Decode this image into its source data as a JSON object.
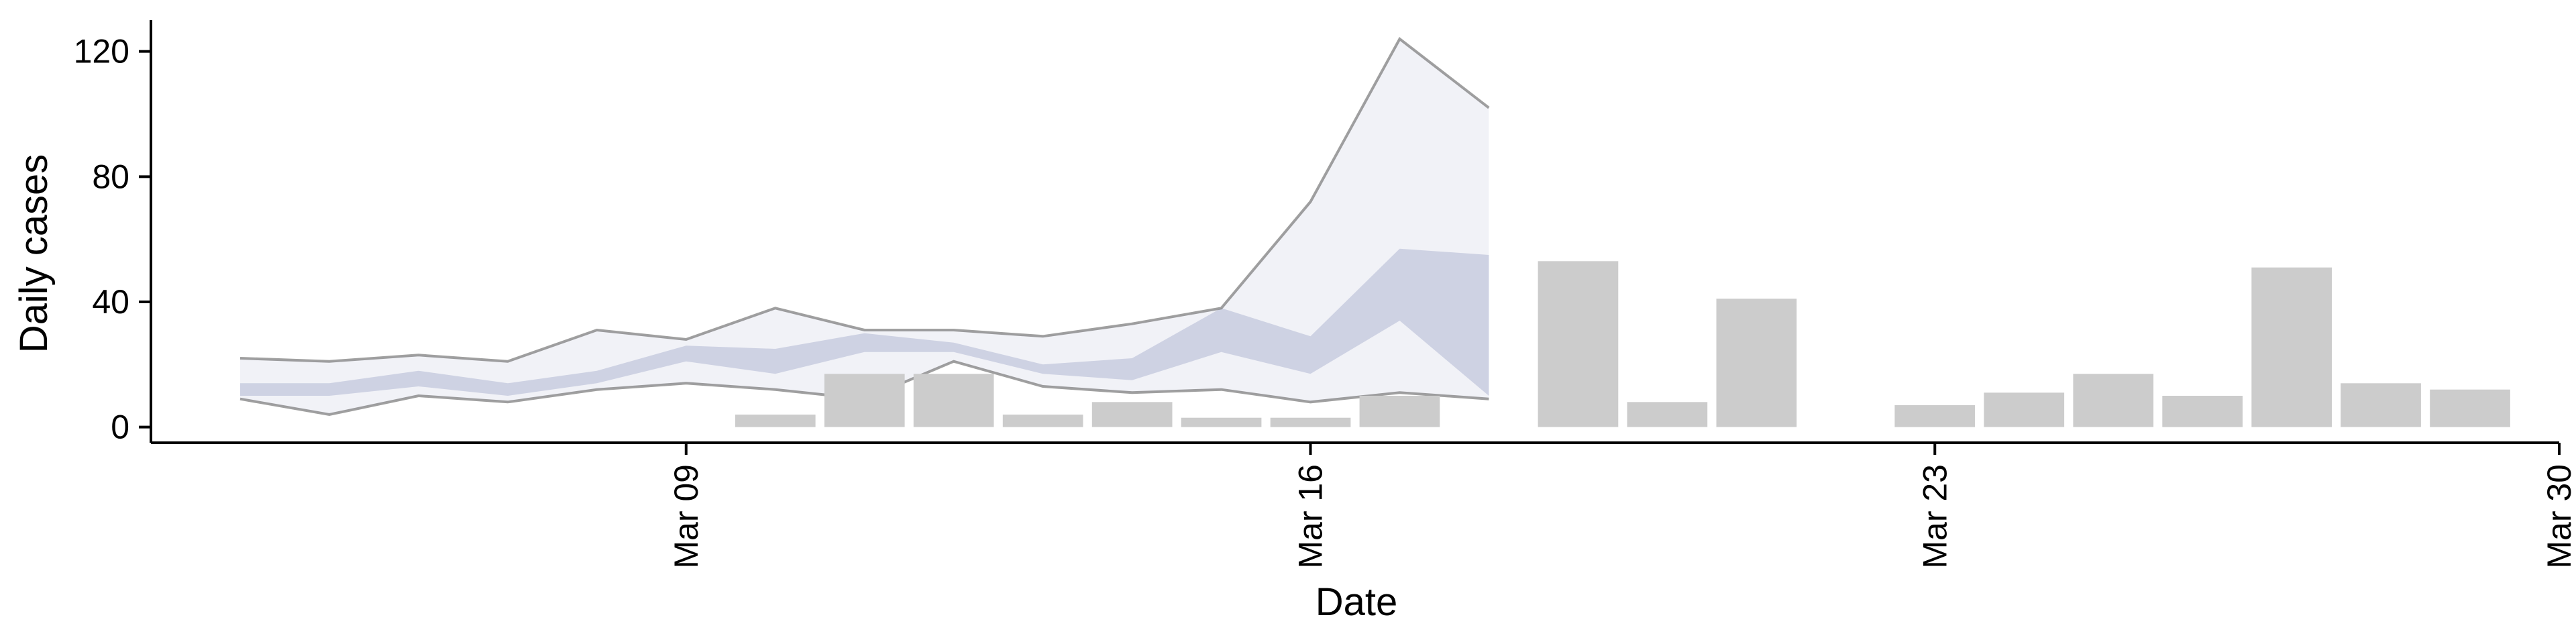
{
  "chart_data": {
    "type": "bar",
    "xlabel": "Date",
    "ylabel": "Daily cases",
    "xlim": [
      "2020-03-03",
      "2020-03-30"
    ],
    "ylim": [
      -5,
      130
    ],
    "x_ticks": [
      {
        "date": "2020-03-09",
        "label": "Mar 09"
      },
      {
        "date": "2020-03-16",
        "label": "Mar 16"
      },
      {
        "date": "2020-03-23",
        "label": "Mar 23"
      },
      {
        "date": "2020-03-30",
        "label": "Mar 30"
      }
    ],
    "y_ticks": [
      0,
      40,
      80,
      120
    ],
    "grid": false,
    "bars": {
      "color": "#cccccc",
      "points": [
        {
          "date": "2020-03-10",
          "value": 4
        },
        {
          "date": "2020-03-11",
          "value": 17
        },
        {
          "date": "2020-03-12",
          "value": 17
        },
        {
          "date": "2020-03-13",
          "value": 4
        },
        {
          "date": "2020-03-14",
          "value": 8
        },
        {
          "date": "2020-03-15",
          "value": 3
        },
        {
          "date": "2020-03-16",
          "value": 3
        },
        {
          "date": "2020-03-17",
          "value": 10
        },
        {
          "date": "2020-03-19",
          "value": 53
        },
        {
          "date": "2020-03-20",
          "value": 8
        },
        {
          "date": "2020-03-21",
          "value": 41
        },
        {
          "date": "2020-03-23",
          "value": 7
        },
        {
          "date": "2020-03-24",
          "value": 11
        },
        {
          "date": "2020-03-25",
          "value": 17
        },
        {
          "date": "2020-03-26",
          "value": 10
        },
        {
          "date": "2020-03-27",
          "value": 51
        },
        {
          "date": "2020-03-28",
          "value": 14
        },
        {
          "date": "2020-03-29",
          "value": 12
        }
      ]
    },
    "ribbon": {
      "colors": {
        "outer_line": "#777777",
        "inner_band": "#b8bdd6",
        "outer_band": "#e8eaf2"
      },
      "dates": [
        "2020-03-04",
        "2020-03-05",
        "2020-03-06",
        "2020-03-07",
        "2020-03-08",
        "2020-03-09",
        "2020-03-10",
        "2020-03-11",
        "2020-03-12",
        "2020-03-13",
        "2020-03-14",
        "2020-03-15",
        "2020-03-16",
        "2020-03-17",
        "2020-03-18",
        "2020-03-19",
        "2020-03-20"
      ],
      "upper90": [
        22,
        21,
        23,
        21,
        31,
        28,
        38,
        31,
        31,
        29,
        33,
        38,
        72,
        124,
        102,
        null,
        null
      ],
      "upper50": [
        14,
        14,
        18,
        14,
        18,
        26,
        25,
        30,
        27,
        20,
        22,
        38,
        29,
        57,
        55,
        null,
        null
      ],
      "lower50": [
        10,
        10,
        13,
        10,
        14,
        21,
        17,
        24,
        24,
        17,
        15,
        24,
        17,
        34,
        10,
        null,
        null
      ],
      "lower90": [
        9,
        4,
        10,
        8,
        12,
        14,
        12,
        9,
        21,
        13,
        11,
        12,
        8,
        11,
        9,
        null,
        null
      ]
    }
  }
}
